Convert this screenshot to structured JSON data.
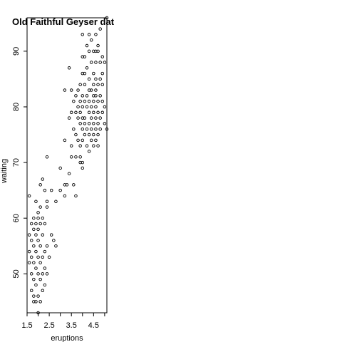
{
  "chart_data": {
    "type": "scatter",
    "title": "Old Faithful Geyser data",
    "xlabel": "eruptions",
    "ylabel": "waiting",
    "xlim": [
      1.5,
      5.1
    ],
    "ylim": [
      43,
      96
    ],
    "xticks": [
      "1.5",
      "2.5",
      "3.5",
      "4.5"
    ],
    "xtick_values": [
      1.5,
      2.5,
      3.5,
      4.5
    ],
    "xticks_minor": [
      2.0,
      3.0,
      4.0,
      5.0
    ],
    "yticks": [
      "50",
      "60",
      "70",
      "80",
      "90"
    ],
    "ytick_values": [
      50,
      60,
      70,
      80,
      90
    ],
    "marker": "open-circle",
    "marker_color": "#000000",
    "points": [
      [
        5.1,
        96
      ],
      [
        4.8,
        94
      ],
      [
        4.3,
        93
      ],
      [
        4.0,
        93
      ],
      [
        4.6,
        93
      ],
      [
        4.4,
        92
      ],
      [
        4.2,
        91
      ],
      [
        4.7,
        91
      ],
      [
        4.5,
        90
      ],
      [
        4.6,
        90
      ],
      [
        4.7,
        90
      ],
      [
        4.3,
        90
      ],
      [
        4.1,
        89
      ],
      [
        4.9,
        89
      ],
      [
        4.0,
        89
      ],
      [
        4.4,
        88
      ],
      [
        4.8,
        88
      ],
      [
        5.0,
        88
      ],
      [
        4.6,
        88
      ],
      [
        3.4,
        87
      ],
      [
        4.2,
        87
      ],
      [
        4.9,
        86
      ],
      [
        4.1,
        86
      ],
      [
        4.5,
        86
      ],
      [
        4.0,
        86
      ],
      [
        4.8,
        85
      ],
      [
        4.3,
        85
      ],
      [
        4.6,
        85
      ],
      [
        4.9,
        84
      ],
      [
        4.5,
        84
      ],
      [
        4.1,
        84
      ],
      [
        4.7,
        84
      ],
      [
        3.9,
        84
      ],
      [
        3.5,
        83
      ],
      [
        3.2,
        83
      ],
      [
        4.3,
        83
      ],
      [
        4.6,
        83
      ],
      [
        3.8,
        83
      ],
      [
        4.4,
        83
      ],
      [
        4.0,
        82
      ],
      [
        4.6,
        82
      ],
      [
        4.8,
        82
      ],
      [
        3.7,
        82
      ],
      [
        4.2,
        82
      ],
      [
        4.5,
        82
      ],
      [
        3.6,
        81
      ],
      [
        4.1,
        81
      ],
      [
        4.5,
        81
      ],
      [
        4.3,
        81
      ],
      [
        4.7,
        81
      ],
      [
        3.9,
        81
      ],
      [
        4.9,
        81
      ],
      [
        4.0,
        80
      ],
      [
        4.4,
        80
      ],
      [
        3.8,
        80
      ],
      [
        4.6,
        80
      ],
      [
        5.0,
        80
      ],
      [
        4.2,
        80
      ],
      [
        3.5,
        79
      ],
      [
        4.3,
        79
      ],
      [
        4.7,
        79
      ],
      [
        3.9,
        79
      ],
      [
        4.5,
        79
      ],
      [
        4.9,
        79
      ],
      [
        3.7,
        79
      ],
      [
        4.1,
        78
      ],
      [
        4.6,
        78
      ],
      [
        4.8,
        78
      ],
      [
        3.8,
        78
      ],
      [
        4.4,
        78
      ],
      [
        4.0,
        78
      ],
      [
        3.4,
        78
      ],
      [
        4.3,
        77
      ],
      [
        4.7,
        77
      ],
      [
        5.0,
        77
      ],
      [
        4.1,
        77
      ],
      [
        4.5,
        77
      ],
      [
        3.9,
        77
      ],
      [
        4.6,
        76
      ],
      [
        4.2,
        76
      ],
      [
        3.6,
        76
      ],
      [
        4.4,
        76
      ],
      [
        4.8,
        76
      ],
      [
        5.1,
        76
      ],
      [
        4.0,
        76
      ],
      [
        3.7,
        75
      ],
      [
        4.3,
        75
      ],
      [
        4.5,
        75
      ],
      [
        4.7,
        75
      ],
      [
        4.1,
        75
      ],
      [
        3.8,
        74
      ],
      [
        4.4,
        74
      ],
      [
        4.6,
        74
      ],
      [
        3.2,
        74
      ],
      [
        4.0,
        74
      ],
      [
        4.2,
        73
      ],
      [
        4.5,
        73
      ],
      [
        3.9,
        73
      ],
      [
        3.5,
        73
      ],
      [
        4.7,
        73
      ],
      [
        4.3,
        72
      ],
      [
        3.7,
        71
      ],
      [
        3.5,
        71
      ],
      [
        3.9,
        71
      ],
      [
        4.0,
        70
      ],
      [
        3.9,
        70
      ],
      [
        4.0,
        69
      ],
      [
        2.4,
        71
      ],
      [
        3.0,
        69
      ],
      [
        3.4,
        68
      ],
      [
        3.2,
        66
      ],
      [
        3.3,
        66
      ],
      [
        3.6,
        66
      ],
      [
        3.0,
        65
      ],
      [
        3.2,
        64
      ],
      [
        2.6,
        65
      ],
      [
        2.3,
        65
      ],
      [
        2.1,
        66
      ],
      [
        2.2,
        67
      ],
      [
        3.7,
        64
      ],
      [
        2.4,
        63
      ],
      [
        2.8,
        63
      ],
      [
        1.6,
        64
      ],
      [
        1.9,
        63
      ],
      [
        2.1,
        62
      ],
      [
        2.0,
        61
      ],
      [
        2.4,
        62
      ],
      [
        1.8,
        60
      ],
      [
        2.0,
        60
      ],
      [
        2.2,
        60
      ],
      [
        1.9,
        59
      ],
      [
        2.3,
        59
      ],
      [
        1.7,
        59
      ],
      [
        2.1,
        59
      ],
      [
        2.6,
        57
      ],
      [
        2.0,
        58
      ],
      [
        1.8,
        58
      ],
      [
        1.6,
        57
      ],
      [
        1.9,
        57
      ],
      [
        2.2,
        57
      ],
      [
        1.7,
        56
      ],
      [
        2.0,
        56
      ],
      [
        2.7,
        56
      ],
      [
        2.4,
        55
      ],
      [
        1.8,
        55
      ],
      [
        2.1,
        55
      ],
      [
        2.8,
        55
      ],
      [
        1.6,
        54
      ],
      [
        1.9,
        54
      ],
      [
        2.3,
        54
      ],
      [
        2.2,
        53
      ],
      [
        1.7,
        53
      ],
      [
        2.0,
        53
      ],
      [
        2.5,
        53
      ],
      [
        1.8,
        52
      ],
      [
        2.1,
        52
      ],
      [
        1.6,
        52
      ],
      [
        1.9,
        51
      ],
      [
        2.3,
        51
      ],
      [
        1.7,
        50
      ],
      [
        2.0,
        50
      ],
      [
        2.4,
        50
      ],
      [
        2.2,
        50
      ],
      [
        1.8,
        49
      ],
      [
        2.1,
        49
      ],
      [
        1.9,
        48
      ],
      [
        2.3,
        48
      ],
      [
        1.7,
        47
      ],
      [
        2.2,
        47
      ],
      [
        1.8,
        46
      ],
      [
        2.0,
        46
      ],
      [
        1.9,
        45
      ],
      [
        2.1,
        45
      ],
      [
        1.8,
        45
      ],
      [
        2.0,
        43
      ]
    ]
  }
}
